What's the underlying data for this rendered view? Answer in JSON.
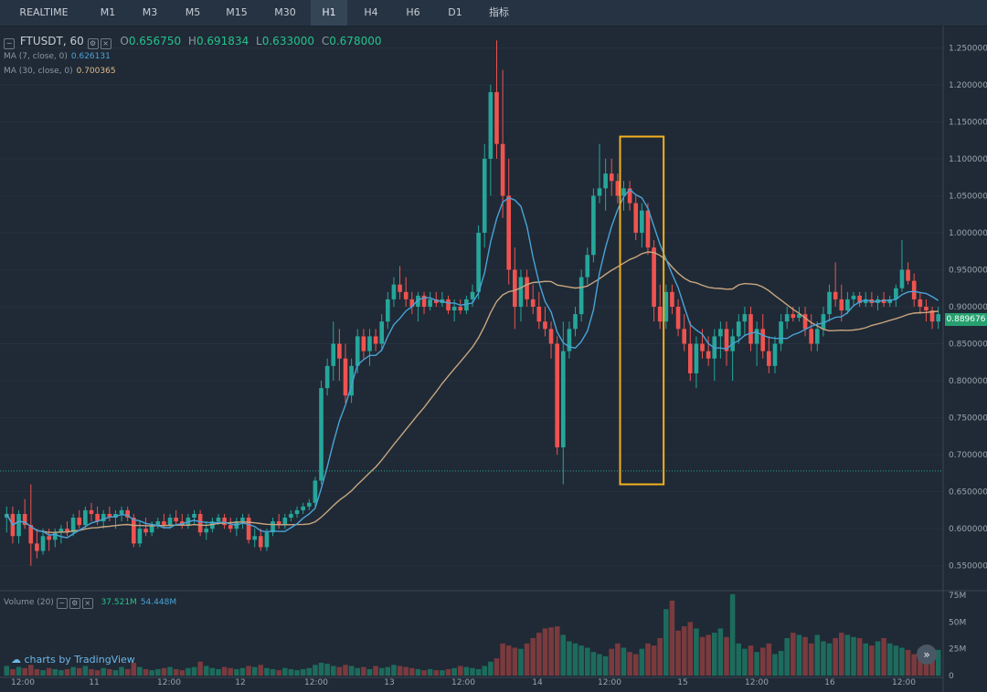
{
  "tabs": [
    {
      "label": "REALTIME",
      "active": false
    },
    {
      "label": "M1",
      "active": false
    },
    {
      "label": "M3",
      "active": false
    },
    {
      "label": "M5",
      "active": false
    },
    {
      "label": "M15",
      "active": false
    },
    {
      "label": "M30",
      "active": false
    },
    {
      "label": "H1",
      "active": true
    },
    {
      "label": "H4",
      "active": false
    },
    {
      "label": "H6",
      "active": false
    },
    {
      "label": "D1",
      "active": false
    },
    {
      "label": "指标",
      "active": false
    }
  ],
  "legend": {
    "symbol": "FTUSDT, 60",
    "o_label": "O",
    "o_value": "0.656750",
    "h_label": "H",
    "h_value": "0.691834",
    "l_label": "L",
    "l_value": "0.633000",
    "c_label": "C",
    "c_value": "0.678000",
    "ma7_label": "MA (7, close, 0)",
    "ma7_value": "0.626131",
    "ma30_label": "MA (30, close, 0)",
    "ma30_value": "0.700365",
    "volume_label": "Volume (20)",
    "volume_a": "37.521M",
    "volume_b": "54.448M"
  },
  "branding": "charts by TradingView",
  "last_price": "0.889676",
  "colors": {
    "up": "#26a69a",
    "down": "#ef5350",
    "ma7": "#4aa3d8",
    "ma30": "#c9a57f",
    "highlight": "#f2b01e",
    "background": "#1f2a36"
  },
  "chart_data": {
    "type": "candlestick",
    "title": "FTUSDT, 60",
    "interval": "H1",
    "price_axis": {
      "ticks": [
        "0.550000",
        "0.600000",
        "0.650000",
        "0.700000",
        "0.750000",
        "0.800000",
        "0.850000",
        "0.900000",
        "0.950000",
        "1.000000",
        "1.050000",
        "1.100000",
        "1.150000",
        "1.200000",
        "1.250000"
      ],
      "ylim": [
        0.52,
        1.28
      ]
    },
    "volume_axis": {
      "ticks": [
        "0",
        "25M",
        "50M",
        "75M"
      ],
      "ylim": [
        0,
        75
      ]
    },
    "time_axis": {
      "ticks": [
        "12:00",
        "11",
        "12:00",
        "12",
        "12:00",
        "13",
        "12:00",
        "14",
        "12:00",
        "15",
        "12:00",
        "16",
        "12:00"
      ]
    },
    "candles": [
      {
        "o": 0.615,
        "h": 0.63,
        "l": 0.595,
        "c": 0.62
      },
      {
        "o": 0.62,
        "h": 0.63,
        "l": 0.58,
        "c": 0.59
      },
      {
        "o": 0.59,
        "h": 0.625,
        "l": 0.58,
        "c": 0.62
      },
      {
        "o": 0.62,
        "h": 0.64,
        "l": 0.6,
        "c": 0.605
      },
      {
        "o": 0.605,
        "h": 0.66,
        "l": 0.55,
        "c": 0.58
      },
      {
        "o": 0.58,
        "h": 0.6,
        "l": 0.56,
        "c": 0.57
      },
      {
        "o": 0.57,
        "h": 0.6,
        "l": 0.565,
        "c": 0.59
      },
      {
        "o": 0.59,
        "h": 0.6,
        "l": 0.57,
        "c": 0.585
      },
      {
        "o": 0.585,
        "h": 0.6,
        "l": 0.575,
        "c": 0.595
      },
      {
        "o": 0.595,
        "h": 0.605,
        "l": 0.58,
        "c": 0.6
      },
      {
        "o": 0.6,
        "h": 0.61,
        "l": 0.59,
        "c": 0.595
      },
      {
        "o": 0.595,
        "h": 0.62,
        "l": 0.59,
        "c": 0.615
      },
      {
        "o": 0.615,
        "h": 0.625,
        "l": 0.6,
        "c": 0.605
      },
      {
        "o": 0.605,
        "h": 0.63,
        "l": 0.6,
        "c": 0.625
      },
      {
        "o": 0.625,
        "h": 0.635,
        "l": 0.61,
        "c": 0.62
      },
      {
        "o": 0.62,
        "h": 0.63,
        "l": 0.605,
        "c": 0.61
      },
      {
        "o": 0.61,
        "h": 0.625,
        "l": 0.6,
        "c": 0.62
      },
      {
        "o": 0.62,
        "h": 0.63,
        "l": 0.61,
        "c": 0.615
      },
      {
        "o": 0.615,
        "h": 0.625,
        "l": 0.6,
        "c": 0.62
      },
      {
        "o": 0.62,
        "h": 0.63,
        "l": 0.61,
        "c": 0.625
      },
      {
        "o": 0.625,
        "h": 0.63,
        "l": 0.61,
        "c": 0.615
      },
      {
        "o": 0.615,
        "h": 0.62,
        "l": 0.575,
        "c": 0.58
      },
      {
        "o": 0.58,
        "h": 0.61,
        "l": 0.575,
        "c": 0.6
      },
      {
        "o": 0.6,
        "h": 0.615,
        "l": 0.59,
        "c": 0.595
      },
      {
        "o": 0.595,
        "h": 0.61,
        "l": 0.59,
        "c": 0.605
      },
      {
        "o": 0.605,
        "h": 0.615,
        "l": 0.6,
        "c": 0.61
      },
      {
        "o": 0.61,
        "h": 0.62,
        "l": 0.6,
        "c": 0.605
      },
      {
        "o": 0.605,
        "h": 0.62,
        "l": 0.6,
        "c": 0.615
      },
      {
        "o": 0.615,
        "h": 0.625,
        "l": 0.605,
        "c": 0.61
      },
      {
        "o": 0.61,
        "h": 0.62,
        "l": 0.6,
        "c": 0.605
      },
      {
        "o": 0.605,
        "h": 0.62,
        "l": 0.6,
        "c": 0.615
      },
      {
        "o": 0.615,
        "h": 0.625,
        "l": 0.605,
        "c": 0.62
      },
      {
        "o": 0.62,
        "h": 0.625,
        "l": 0.59,
        "c": 0.595
      },
      {
        "o": 0.595,
        "h": 0.61,
        "l": 0.585,
        "c": 0.6
      },
      {
        "o": 0.6,
        "h": 0.615,
        "l": 0.595,
        "c": 0.61
      },
      {
        "o": 0.61,
        "h": 0.62,
        "l": 0.605,
        "c": 0.615
      },
      {
        "o": 0.615,
        "h": 0.62,
        "l": 0.6,
        "c": 0.605
      },
      {
        "o": 0.605,
        "h": 0.615,
        "l": 0.595,
        "c": 0.6
      },
      {
        "o": 0.6,
        "h": 0.615,
        "l": 0.59,
        "c": 0.61
      },
      {
        "o": 0.61,
        "h": 0.62,
        "l": 0.6,
        "c": 0.615
      },
      {
        "o": 0.615,
        "h": 0.62,
        "l": 0.58,
        "c": 0.585
      },
      {
        "o": 0.585,
        "h": 0.6,
        "l": 0.575,
        "c": 0.59
      },
      {
        "o": 0.59,
        "h": 0.6,
        "l": 0.57,
        "c": 0.575
      },
      {
        "o": 0.575,
        "h": 0.6,
        "l": 0.57,
        "c": 0.595
      },
      {
        "o": 0.595,
        "h": 0.615,
        "l": 0.59,
        "c": 0.61
      },
      {
        "o": 0.61,
        "h": 0.62,
        "l": 0.6,
        "c": 0.605
      },
      {
        "o": 0.605,
        "h": 0.62,
        "l": 0.6,
        "c": 0.615
      },
      {
        "o": 0.615,
        "h": 0.625,
        "l": 0.61,
        "c": 0.62
      },
      {
        "o": 0.62,
        "h": 0.63,
        "l": 0.615,
        "c": 0.625
      },
      {
        "o": 0.625,
        "h": 0.635,
        "l": 0.62,
        "c": 0.63
      },
      {
        "o": 0.63,
        "h": 0.64,
        "l": 0.625,
        "c": 0.635
      },
      {
        "o": 0.635,
        "h": 0.67,
        "l": 0.63,
        "c": 0.665
      },
      {
        "o": 0.665,
        "h": 0.8,
        "l": 0.66,
        "c": 0.79
      },
      {
        "o": 0.79,
        "h": 0.83,
        "l": 0.78,
        "c": 0.82
      },
      {
        "o": 0.82,
        "h": 0.88,
        "l": 0.8,
        "c": 0.85
      },
      {
        "o": 0.85,
        "h": 0.87,
        "l": 0.8,
        "c": 0.83
      },
      {
        "o": 0.83,
        "h": 0.85,
        "l": 0.77,
        "c": 0.78
      },
      {
        "o": 0.78,
        "h": 0.83,
        "l": 0.77,
        "c": 0.82
      },
      {
        "o": 0.82,
        "h": 0.87,
        "l": 0.81,
        "c": 0.86
      },
      {
        "o": 0.86,
        "h": 0.87,
        "l": 0.83,
        "c": 0.84
      },
      {
        "o": 0.84,
        "h": 0.87,
        "l": 0.82,
        "c": 0.86
      },
      {
        "o": 0.86,
        "h": 0.87,
        "l": 0.84,
        "c": 0.85
      },
      {
        "o": 0.85,
        "h": 0.89,
        "l": 0.84,
        "c": 0.88
      },
      {
        "o": 0.88,
        "h": 0.92,
        "l": 0.87,
        "c": 0.91
      },
      {
        "o": 0.91,
        "h": 0.94,
        "l": 0.9,
        "c": 0.93
      },
      {
        "o": 0.93,
        "h": 0.955,
        "l": 0.91,
        "c": 0.92
      },
      {
        "o": 0.92,
        "h": 0.94,
        "l": 0.9,
        "c": 0.91
      },
      {
        "o": 0.91,
        "h": 0.92,
        "l": 0.89,
        "c": 0.9
      },
      {
        "o": 0.9,
        "h": 0.92,
        "l": 0.88,
        "c": 0.915
      },
      {
        "o": 0.915,
        "h": 0.92,
        "l": 0.89,
        "c": 0.9
      },
      {
        "o": 0.9,
        "h": 0.92,
        "l": 0.895,
        "c": 0.91
      },
      {
        "o": 0.91,
        "h": 0.92,
        "l": 0.9,
        "c": 0.905
      },
      {
        "o": 0.905,
        "h": 0.92,
        "l": 0.9,
        "c": 0.91
      },
      {
        "o": 0.91,
        "h": 0.915,
        "l": 0.89,
        "c": 0.895
      },
      {
        "o": 0.895,
        "h": 0.91,
        "l": 0.88,
        "c": 0.9
      },
      {
        "o": 0.9,
        "h": 0.91,
        "l": 0.89,
        "c": 0.895
      },
      {
        "o": 0.895,
        "h": 0.915,
        "l": 0.89,
        "c": 0.91
      },
      {
        "o": 0.91,
        "h": 0.93,
        "l": 0.9,
        "c": 0.92
      },
      {
        "o": 0.92,
        "h": 1.01,
        "l": 0.91,
        "c": 1
      },
      {
        "o": 1,
        "h": 1.12,
        "l": 0.98,
        "c": 1.1
      },
      {
        "o": 1.1,
        "h": 1.2,
        "l": 1.05,
        "c": 1.19
      },
      {
        "o": 1.19,
        "h": 1.26,
        "l": 1.1,
        "c": 1.12
      },
      {
        "o": 1.12,
        "h": 1.22,
        "l": 1.02,
        "c": 1.05
      },
      {
        "o": 1.05,
        "h": 1.1,
        "l": 0.93,
        "c": 0.95
      },
      {
        "o": 0.95,
        "h": 0.98,
        "l": 0.87,
        "c": 0.9
      },
      {
        "o": 0.9,
        "h": 0.95,
        "l": 0.88,
        "c": 0.94
      },
      {
        "o": 0.94,
        "h": 0.95,
        "l": 0.9,
        "c": 0.91
      },
      {
        "o": 0.91,
        "h": 0.93,
        "l": 0.89,
        "c": 0.9
      },
      {
        "o": 0.9,
        "h": 0.92,
        "l": 0.87,
        "c": 0.88
      },
      {
        "o": 0.88,
        "h": 0.9,
        "l": 0.86,
        "c": 0.87
      },
      {
        "o": 0.87,
        "h": 0.88,
        "l": 0.83,
        "c": 0.85
      },
      {
        "o": 0.85,
        "h": 0.86,
        "l": 0.7,
        "c": 0.71
      },
      {
        "o": 0.71,
        "h": 0.88,
        "l": 0.66,
        "c": 0.84
      },
      {
        "o": 0.84,
        "h": 0.88,
        "l": 0.83,
        "c": 0.87
      },
      {
        "o": 0.87,
        "h": 0.9,
        "l": 0.86,
        "c": 0.89
      },
      {
        "o": 0.89,
        "h": 0.95,
        "l": 0.88,
        "c": 0.94
      },
      {
        "o": 0.94,
        "h": 0.98,
        "l": 0.93,
        "c": 0.97
      },
      {
        "o": 0.97,
        "h": 1.06,
        "l": 0.96,
        "c": 1.05
      },
      {
        "o": 1.05,
        "h": 1.12,
        "l": 1.04,
        "c": 1.06
      },
      {
        "o": 1.06,
        "h": 1.1,
        "l": 1.03,
        "c": 1.08
      },
      {
        "o": 1.08,
        "h": 1.1,
        "l": 1.05,
        "c": 1.07
      },
      {
        "o": 1.07,
        "h": 1.08,
        "l": 1.04,
        "c": 1.05
      },
      {
        "o": 1.05,
        "h": 1.07,
        "l": 1.03,
        "c": 1.06
      },
      {
        "o": 1.06,
        "h": 1.07,
        "l": 1.03,
        "c": 1.04
      },
      {
        "o": 1.04,
        "h": 1.05,
        "l": 0.99,
        "c": 1
      },
      {
        "o": 1,
        "h": 1.04,
        "l": 0.98,
        "c": 1.03
      },
      {
        "o": 1.03,
        "h": 1.04,
        "l": 0.97,
        "c": 0.98
      },
      {
        "o": 0.98,
        "h": 0.99,
        "l": 0.88,
        "c": 0.9
      },
      {
        "o": 0.9,
        "h": 0.93,
        "l": 0.87,
        "c": 0.88
      },
      {
        "o": 0.88,
        "h": 0.93,
        "l": 0.87,
        "c": 0.92
      },
      {
        "o": 0.92,
        "h": 0.93,
        "l": 0.89,
        "c": 0.9
      },
      {
        "o": 0.9,
        "h": 0.91,
        "l": 0.86,
        "c": 0.87
      },
      {
        "o": 0.87,
        "h": 0.89,
        "l": 0.84,
        "c": 0.85
      },
      {
        "o": 0.85,
        "h": 0.88,
        "l": 0.8,
        "c": 0.81
      },
      {
        "o": 0.81,
        "h": 0.86,
        "l": 0.79,
        "c": 0.85
      },
      {
        "o": 0.85,
        "h": 0.87,
        "l": 0.83,
        "c": 0.84
      },
      {
        "o": 0.84,
        "h": 0.86,
        "l": 0.82,
        "c": 0.83
      },
      {
        "o": 0.83,
        "h": 0.87,
        "l": 0.8,
        "c": 0.86
      },
      {
        "o": 0.86,
        "h": 0.88,
        "l": 0.83,
        "c": 0.87
      },
      {
        "o": 0.87,
        "h": 0.88,
        "l": 0.82,
        "c": 0.84
      },
      {
        "o": 0.84,
        "h": 0.87,
        "l": 0.8,
        "c": 0.86
      },
      {
        "o": 0.86,
        "h": 0.89,
        "l": 0.85,
        "c": 0.88
      },
      {
        "o": 0.88,
        "h": 0.9,
        "l": 0.86,
        "c": 0.89
      },
      {
        "o": 0.89,
        "h": 0.9,
        "l": 0.84,
        "c": 0.85
      },
      {
        "o": 0.85,
        "h": 0.88,
        "l": 0.82,
        "c": 0.87
      },
      {
        "o": 0.87,
        "h": 0.89,
        "l": 0.83,
        "c": 0.84
      },
      {
        "o": 0.84,
        "h": 0.86,
        "l": 0.81,
        "c": 0.82
      },
      {
        "o": 0.82,
        "h": 0.86,
        "l": 0.81,
        "c": 0.85
      },
      {
        "o": 0.85,
        "h": 0.89,
        "l": 0.84,
        "c": 0.88
      },
      {
        "o": 0.88,
        "h": 0.9,
        "l": 0.87,
        "c": 0.89
      },
      {
        "o": 0.89,
        "h": 0.9,
        "l": 0.88,
        "c": 0.885
      },
      {
        "o": 0.885,
        "h": 0.9,
        "l": 0.88,
        "c": 0.89
      },
      {
        "o": 0.89,
        "h": 0.9,
        "l": 0.86,
        "c": 0.87
      },
      {
        "o": 0.87,
        "h": 0.89,
        "l": 0.84,
        "c": 0.85
      },
      {
        "o": 0.85,
        "h": 0.88,
        "l": 0.84,
        "c": 0.87
      },
      {
        "o": 0.87,
        "h": 0.9,
        "l": 0.86,
        "c": 0.89
      },
      {
        "o": 0.89,
        "h": 0.93,
        "l": 0.88,
        "c": 0.92
      },
      {
        "o": 0.92,
        "h": 0.96,
        "l": 0.9,
        "c": 0.91
      },
      {
        "o": 0.91,
        "h": 0.93,
        "l": 0.88,
        "c": 0.895
      },
      {
        "o": 0.895,
        "h": 0.92,
        "l": 0.89,
        "c": 0.91
      },
      {
        "o": 0.91,
        "h": 0.92,
        "l": 0.9,
        "c": 0.915
      },
      {
        "o": 0.915,
        "h": 0.92,
        "l": 0.9,
        "c": 0.905
      },
      {
        "o": 0.905,
        "h": 0.92,
        "l": 0.9,
        "c": 0.91
      },
      {
        "o": 0.91,
        "h": 0.92,
        "l": 0.9,
        "c": 0.905
      },
      {
        "o": 0.905,
        "h": 0.915,
        "l": 0.895,
        "c": 0.91
      },
      {
        "o": 0.91,
        "h": 0.92,
        "l": 0.9,
        "c": 0.905
      },
      {
        "o": 0.905,
        "h": 0.915,
        "l": 0.9,
        "c": 0.91
      },
      {
        "o": 0.91,
        "h": 0.93,
        "l": 0.9,
        "c": 0.925
      },
      {
        "o": 0.925,
        "h": 0.99,
        "l": 0.92,
        "c": 0.95
      },
      {
        "o": 0.95,
        "h": 0.96,
        "l": 0.93,
        "c": 0.935
      },
      {
        "o": 0.935,
        "h": 0.945,
        "l": 0.9,
        "c": 0.91
      },
      {
        "o": 0.91,
        "h": 0.92,
        "l": 0.89,
        "c": 0.9
      },
      {
        "o": 0.9,
        "h": 0.91,
        "l": 0.88,
        "c": 0.895
      },
      {
        "o": 0.895,
        "h": 0.9,
        "l": 0.87,
        "c": 0.88
      },
      {
        "o": 0.88,
        "h": 0.9,
        "l": 0.87,
        "c": 0.89
      }
    ],
    "volume": [
      9,
      6,
      8,
      7,
      10,
      6,
      5,
      7,
      6,
      5,
      6,
      8,
      7,
      9,
      6,
      5,
      7,
      6,
      5,
      8,
      6,
      12,
      8,
      6,
      5,
      6,
      7,
      8,
      6,
      5,
      7,
      8,
      13,
      9,
      7,
      6,
      8,
      7,
      6,
      7,
      9,
      8,
      10,
      7,
      6,
      5,
      7,
      6,
      5,
      6,
      7,
      10,
      12,
      11,
      9,
      8,
      10,
      9,
      7,
      8,
      6,
      9,
      7,
      8,
      10,
      9,
      8,
      7,
      6,
      5,
      6,
      5,
      5,
      6,
      7,
      9,
      8,
      7,
      6,
      9,
      13,
      16,
      30,
      28,
      26,
      25,
      30,
      35,
      40,
      44,
      45,
      46,
      38,
      32,
      30,
      28,
      26,
      22,
      20,
      18,
      25,
      30,
      26,
      22,
      20,
      25,
      30,
      28,
      35,
      62,
      70,
      42,
      46,
      50,
      44,
      36,
      38,
      40,
      44,
      36,
      76,
      30,
      25,
      28,
      22,
      26,
      30,
      20,
      23,
      35,
      40,
      38,
      36,
      30,
      38,
      32,
      30,
      35,
      40,
      38,
      36,
      35,
      30,
      28,
      32,
      35,
      30,
      28,
      26,
      24,
      20,
      25,
      22,
      20,
      24
    ],
    "ma7": "7-period moving average of close",
    "ma30": "30-period moving average of close",
    "highlight_box": {
      "from_index": 102,
      "to_index": 108,
      "price_low": 0.66,
      "price_high": 1.13
    }
  }
}
